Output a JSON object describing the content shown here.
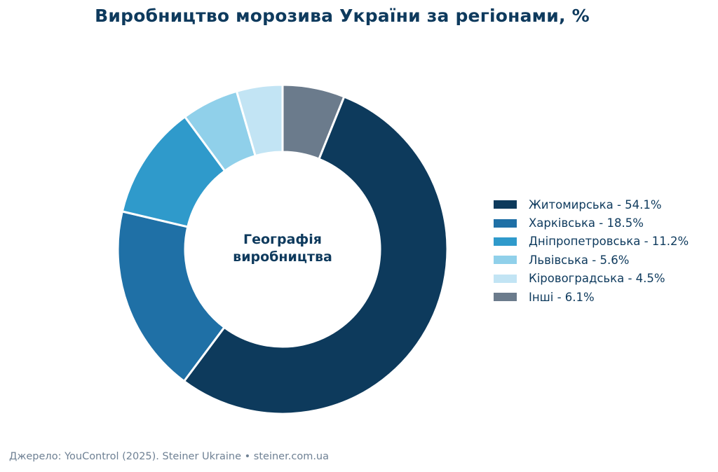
{
  "title": "Виробництво морозива України за регіонами, %",
  "center_label": {
    "line1": "Географія",
    "line2": "виробництва"
  },
  "source": "Джерело: YouControl (2025). Steiner Ukraine • steiner.com.ua",
  "chart_data": {
    "type": "pie",
    "variant": "donut",
    "title": "Виробництво морозива України за регіонами, %",
    "start": "12 o'clock, clockwise, Інші first",
    "legend_placement": "right",
    "slices": [
      {
        "label": "Житомирська",
        "value": 54.1,
        "legend": "Житомирська - 54.1%",
        "color": "#0d3a5c"
      },
      {
        "label": "Харківська",
        "value": 18.5,
        "legend": "Харківська - 18.5%",
        "color": "#1f70a6"
      },
      {
        "label": "Дніпропетровська",
        "value": 11.2,
        "legend": "Дніпропетровська - 11.2%",
        "color": "#2f9acb"
      },
      {
        "label": "Львівська",
        "value": 5.6,
        "legend": "Львівська - 5.6%",
        "color": "#90d0ea"
      },
      {
        "label": "Кіровоградська",
        "value": 4.5,
        "legend": "Кіровоградська - 4.5%",
        "color": "#c2e4f4"
      },
      {
        "label": "Інші",
        "value": 6.1,
        "legend": "Інші - 6.1%",
        "color": "#6b7b8c"
      }
    ]
  }
}
